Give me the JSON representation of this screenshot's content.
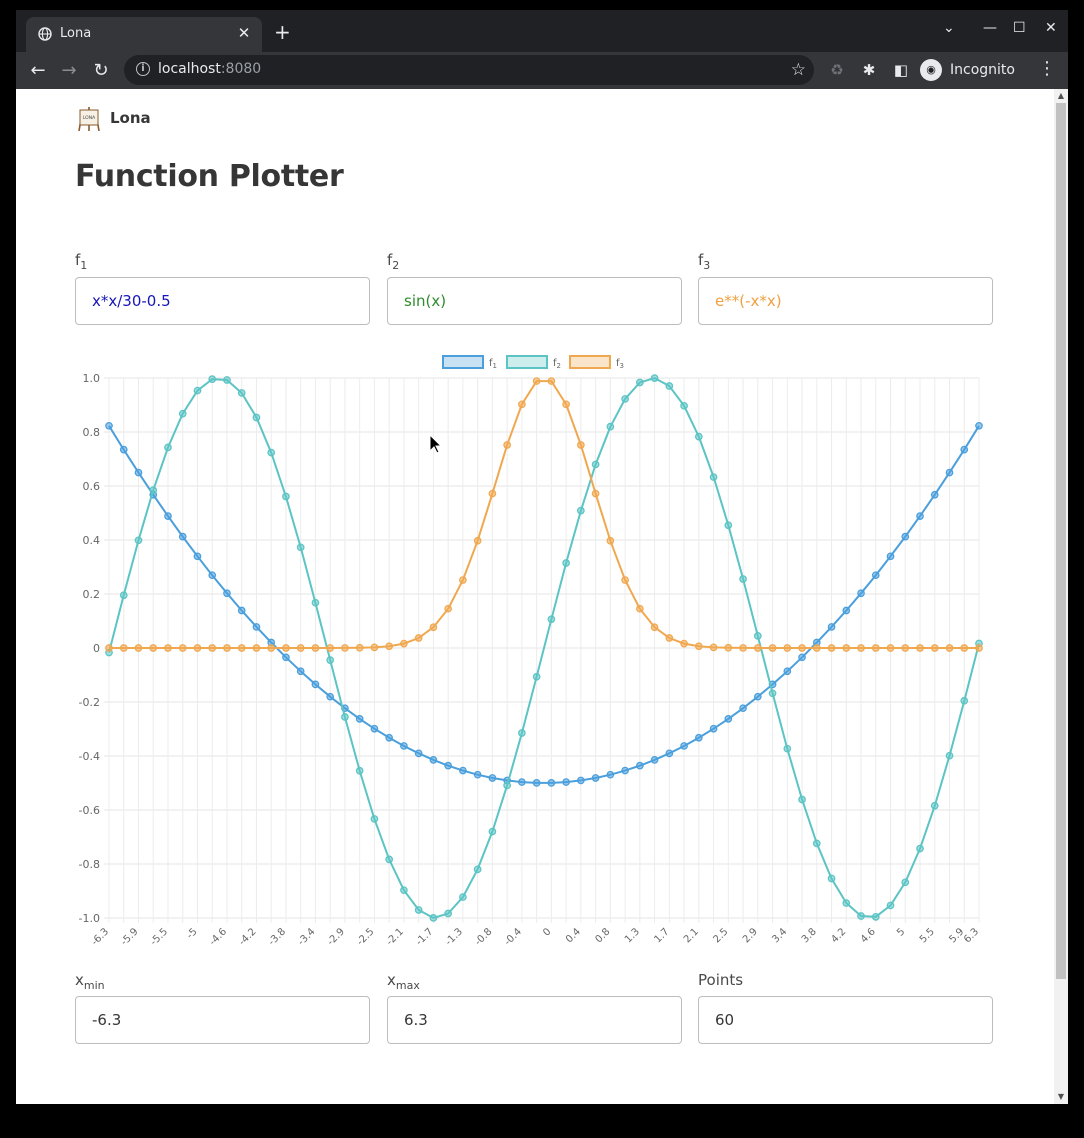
{
  "browser": {
    "tab_title": "Lona",
    "url_host": "localhost",
    "url_port": ":8080",
    "profile_label": "Incognito"
  },
  "page": {
    "brand": "Lona",
    "title": "Function Plotter",
    "functions": [
      {
        "label": "f",
        "sub": "1",
        "value": "x*x/30-0.5",
        "color": "#1515b8"
      },
      {
        "label": "f",
        "sub": "2",
        "value": "sin(x)",
        "color": "#2e8b2e"
      },
      {
        "label": "f",
        "sub": "3",
        "value": "e**(-x*x)",
        "color": "#f0a040"
      }
    ],
    "range": {
      "xmin_label": "x",
      "xmin_sub": "min",
      "xmin": "-6.3",
      "xmax_label": "x",
      "xmax_sub": "max",
      "xmax": "6.3",
      "points_label": "Points",
      "points": "60"
    }
  },
  "chart_data": {
    "type": "line",
    "x_range": [
      -6.3,
      6.3
    ],
    "points": 60,
    "ylim": [
      -1.0,
      1.0
    ],
    "y_ticks": [
      "1.0",
      "0.8",
      "0.6",
      "0.4",
      "0.2",
      "0",
      "-0.2",
      "-0.4",
      "-0.6",
      "-0.8",
      "-1.0"
    ],
    "x_tick_labels": [
      "-6.3",
      "-5.9",
      "-5.5",
      "-5",
      "-4.6",
      "-4.2",
      "-3.8",
      "-3.4",
      "-2.9",
      "-2.5",
      "-2.1",
      "-1.7",
      "-1.3",
      "-0.8",
      "-0.4",
      "0",
      "0.4",
      "0.8",
      "1.3",
      "1.7",
      "2.1",
      "2.5",
      "2.9",
      "3.4",
      "3.8",
      "4.2",
      "4.6",
      "5",
      "5.5",
      "5.9",
      "6.3"
    ],
    "grid": true,
    "legend_position": "top-center",
    "series": [
      {
        "name": "f1",
        "legend_main": "f",
        "legend_sub": "1",
        "expression": "x*x/30-0.5",
        "color": "#4a9fdc"
      },
      {
        "name": "f2",
        "legend_main": "f",
        "legend_sub": "2",
        "expression": "sin(x)",
        "color": "#5cc4c4"
      },
      {
        "name": "f3",
        "legend_main": "f",
        "legend_sub": "3",
        "expression": "e**(-x*x)",
        "color": "#f0a850"
      }
    ]
  }
}
